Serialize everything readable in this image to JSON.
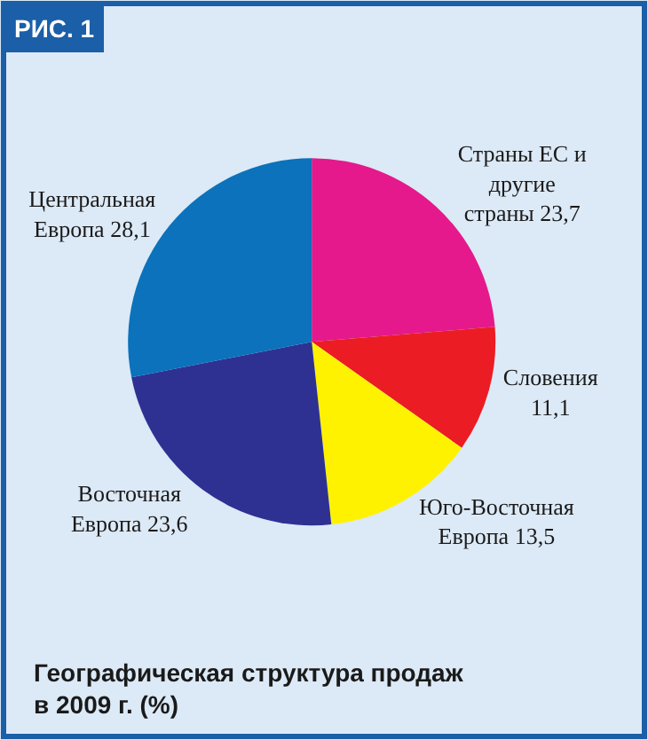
{
  "chart_data": {
    "type": "pie",
    "title": "Географическая структура продаж в 2009 г. (%)",
    "categories": [
      "Страны ЕС и другие страны",
      "Словения",
      "Юго-Восточная Европа",
      "Восточная Европа",
      "Центральная Европа"
    ],
    "values": [
      23.7,
      11.1,
      13.5,
      23.6,
      28.1
    ],
    "value_labels": [
      "23,7",
      "11,1",
      "13,5",
      "23,6",
      "28,1"
    ],
    "colors": [
      "#e5198b",
      "#ec1c24",
      "#fff200",
      "#2e3192",
      "#0b72bb"
    ],
    "annotations": [
      "РИС. 1"
    ],
    "legend": false
  }
}
